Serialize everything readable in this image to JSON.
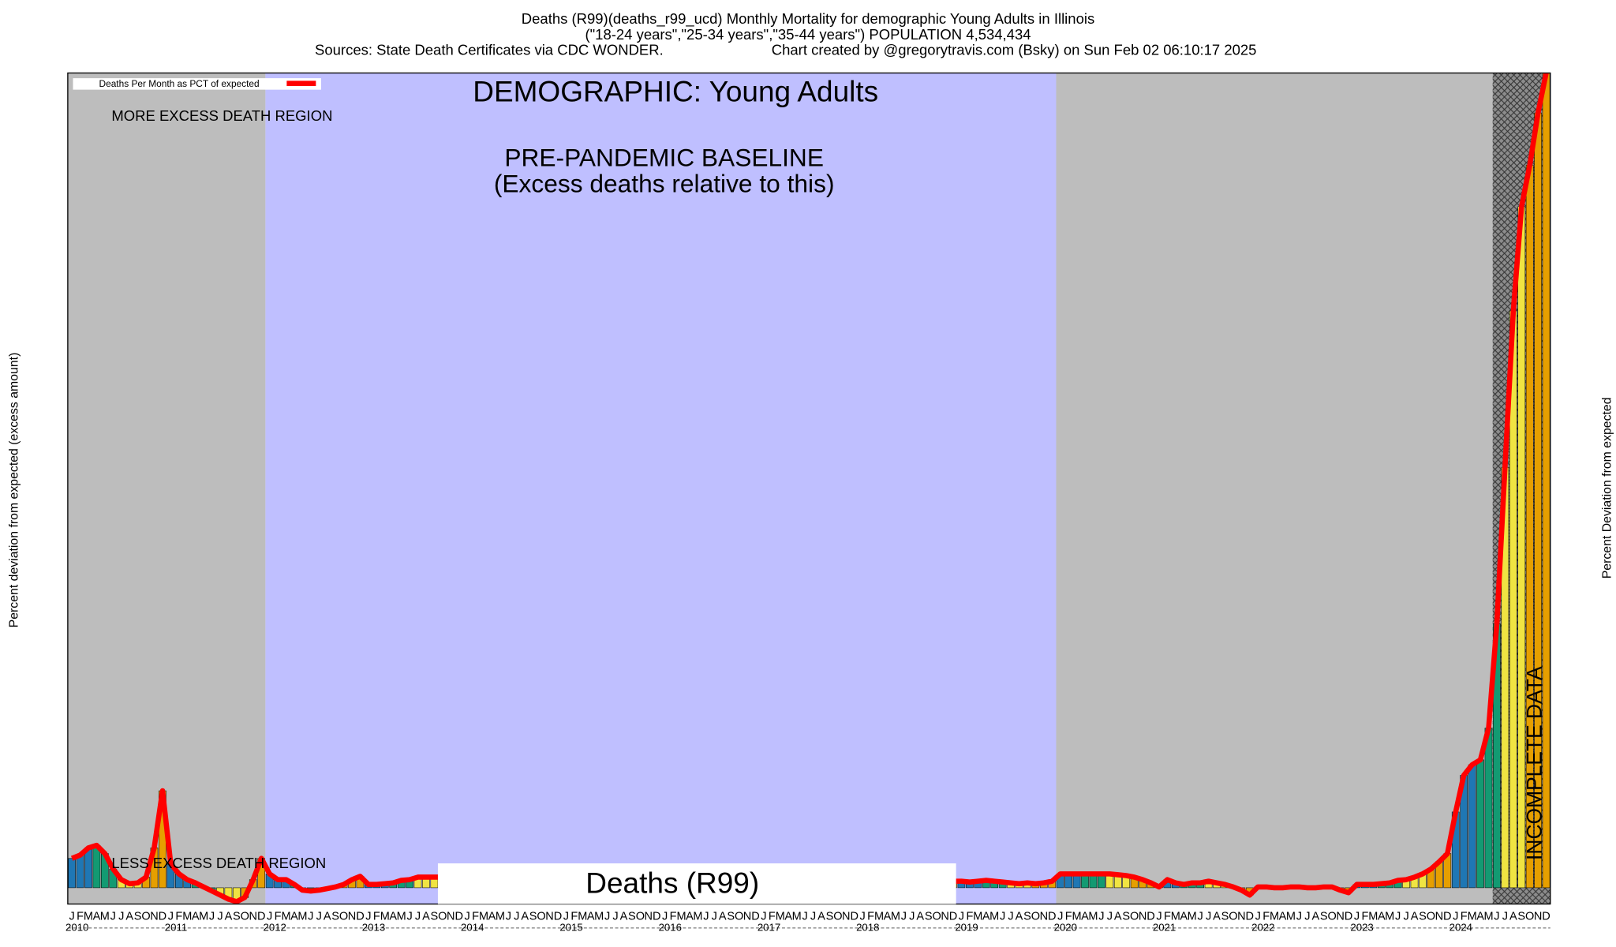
{
  "chart_data": {
    "type": "bar",
    "title": "Deaths (R99)(deaths_r99_ucd) Monthly Mortality for demographic Young Adults in Illinois",
    "subtitle": "(\"18-24 years\",\"25-34 years\",\"35-44 years\") POPULATION 4,534,434",
    "sources": "Sources: State Death Certificates via CDC WONDER.",
    "credit": "Chart created by @gregorytravis.com (Bsky) on Sun Feb 02 06:10:17 2025",
    "y_label": "Percent deviation from expected (excess amount)",
    "y2_label": "Percent Deviation from expected",
    "annotations": {
      "demographic": "DEMOGRAPHIC: Young Adults",
      "baseline": "PRE-PANDEMIC BASELINE",
      "baseline_note": "(Excess deaths relative to this)",
      "more": "MORE EXCESS DEATH REGION",
      "less": "LESS EXCESS DEATH REGION",
      "incomplete": "INCOMPLETE DATA",
      "cause": "Deaths (R99)"
    },
    "month_labels": [
      "J",
      "F",
      "M",
      "A",
      "M",
      "J",
      "J",
      "A",
      "S",
      "O",
      "N",
      "D"
    ],
    "years": [
      "2010",
      "2011",
      "2012",
      "2013",
      "2014",
      "2015",
      "2016",
      "2017",
      "2018",
      "2019",
      "2020",
      "2021",
      "2022",
      "2023",
      "2024"
    ],
    "ylim": [
      -2,
      100
    ],
    "bar_colors": [
      "#1f77b4",
      "#139a72",
      "#f0e442",
      "#e69f00"
    ],
    "regions": [
      {
        "start": 0,
        "end": 24,
        "color": "#bdbdbd"
      },
      {
        "start": 24,
        "end": 120,
        "color": "#bfbfff"
      },
      {
        "start": 120,
        "end": 173,
        "color": "#bdbdbd"
      },
      {
        "start": 173,
        "end": 180,
        "color": "#8c8c8c",
        "hatch": true
      }
    ],
    "series": [
      {
        "name": "Deaths Per Month as PCT of expected",
        "color": "#ff0000",
        "values": [
          3.6,
          4.0,
          4.9,
          5.2,
          4.2,
          2.3,
          1.0,
          0.5,
          0.6,
          1.3,
          4.9,
          11.9,
          2.9,
          1.7,
          1.0,
          0.6,
          0.1,
          -0.4,
          -0.9,
          -1.4,
          -1.7,
          -1.2,
          1.0,
          3.6,
          1.7,
          1.0,
          1.0,
          0.4,
          -0.3,
          -0.4,
          -0.3,
          -0.1,
          0.1,
          0.4,
          1.0,
          1.4,
          0.4,
          0.4,
          0.5,
          0.6,
          0.9,
          1.0,
          1.3,
          1.3,
          1.3,
          1.3,
          1.3,
          1.3,
          1.2,
          1.2,
          1.1,
          1.2,
          1.3,
          1.2,
          1.1,
          1.2,
          1.2,
          1.1,
          1.2,
          1.1,
          1.0,
          1.0,
          1.1,
          1.0,
          0.9,
          1.0,
          1.1,
          1.0,
          1.0,
          0.9,
          1.0,
          1.1,
          1.1,
          1.0,
          1.1,
          1.2,
          1.1,
          1.0,
          1.1,
          1.1,
          1.0,
          1.1,
          1.2,
          1.1,
          0.9,
          0.9,
          1.0,
          0.9,
          0.8,
          0.9,
          1.0,
          0.9,
          0.9,
          0.8,
          0.9,
          0.9,
          0.8,
          0.8,
          0.9,
          0.8,
          0.7,
          0.8,
          0.9,
          0.8,
          0.8,
          0.7,
          0.8,
          0.8,
          0.8,
          0.7,
          0.8,
          0.9,
          0.8,
          0.7,
          0.6,
          0.5,
          0.6,
          0.5,
          0.6,
          0.8,
          1.7,
          1.7,
          1.7,
          1.7,
          1.7,
          1.7,
          1.7,
          1.6,
          1.5,
          1.3,
          1.0,
          0.6,
          0.1,
          1.0,
          0.6,
          0.4,
          0.6,
          0.6,
          0.8,
          0.6,
          0.4,
          0.1,
          -0.3,
          -0.9,
          0.1,
          0.1,
          0.0,
          0.0,
          0.1,
          0.1,
          0.0,
          0.0,
          0.1,
          0.1,
          -0.3,
          -0.6,
          0.4,
          0.4,
          0.4,
          0.5,
          0.6,
          0.9,
          1.0,
          1.3,
          1.7,
          2.3,
          3.2,
          4.2,
          9.3,
          13.8,
          15.1,
          15.7,
          19.6,
          32.4,
          51.6,
          70.8,
          83.6,
          88.7,
          95.1,
          100
        ]
      }
    ]
  }
}
